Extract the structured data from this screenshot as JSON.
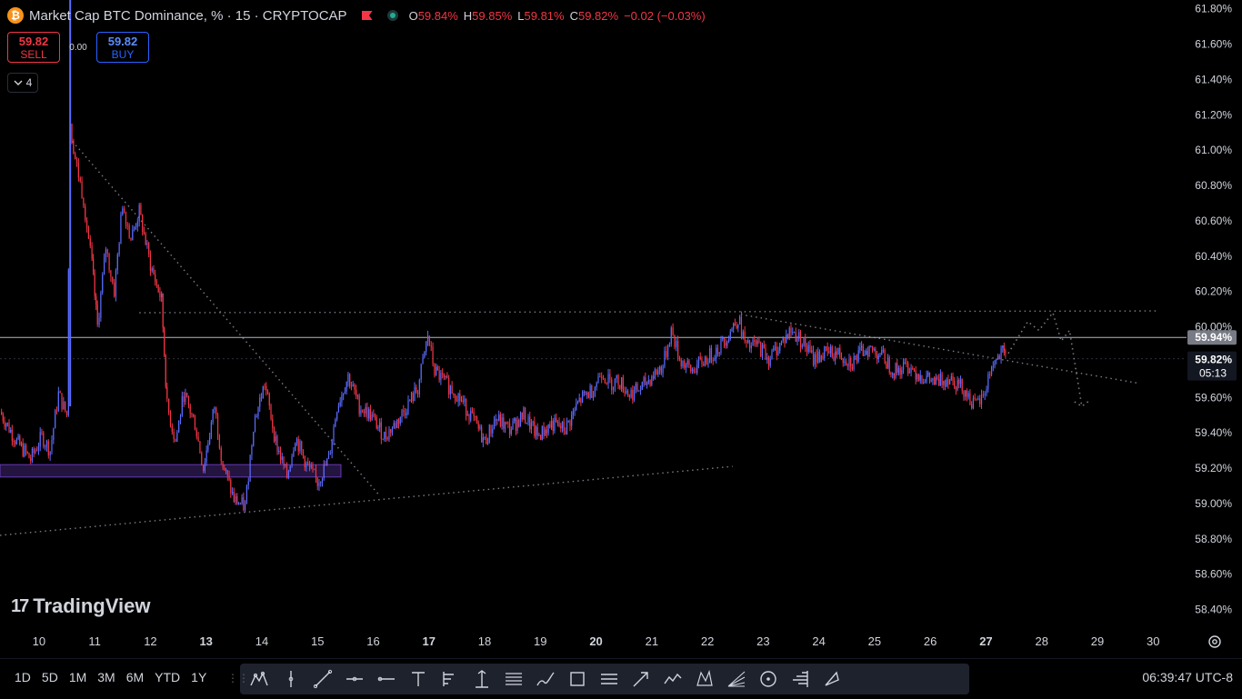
{
  "header": {
    "symbol_badge": "₿",
    "title": "Market Cap BTC Dominance, % · 15 · CRYPTOCAP",
    "ohlc": [
      {
        "k": "O",
        "v": "59.84%"
      },
      {
        "k": "H",
        "v": "59.85%"
      },
      {
        "k": "L",
        "v": "59.81%"
      },
      {
        "k": "C",
        "v": "59.82%"
      }
    ],
    "change": "−0.02 (−0.03%)"
  },
  "trade": {
    "sell_price": "59.82",
    "sell_label": "SELL",
    "spread": "0.00",
    "buy_price": "59.82",
    "buy_label": "BUY"
  },
  "indicators_toggle": {
    "icon": "chevron-down-icon",
    "count": "4"
  },
  "logo": {
    "text": "TradingView"
  },
  "ranges": [
    "1D",
    "5D",
    "1M",
    "3M",
    "6M",
    "YTD",
    "1Y"
  ],
  "tools": [
    "pattern-icon",
    "vertical-line-icon",
    "trend-line-icon",
    "horizontal-ray-icon",
    "horizontal-line-icon",
    "text-icon",
    "long-position-icon",
    "price-range-icon",
    "fib-retracement-icon",
    "brush-icon",
    "rectangle-icon",
    "parallel-channel-icon",
    "arrow-icon",
    "path-icon",
    "xabcd-pattern-icon",
    "gann-fan-icon",
    "circle-icon",
    "volume-profile-icon",
    "arrow-marker-icon"
  ],
  "clock": "06:39:47 UTC-8",
  "settings_icon": "gear-icon",
  "colors": {
    "up": "#5b6cff",
    "down": "#f23645",
    "bg": "#000000",
    "grid_text": "#d1d4dc"
  },
  "chart_data": {
    "type": "candlestick",
    "timeframe": "15",
    "ylim": [
      58.3,
      61.85
    ],
    "y_ticks": [
      61.8,
      61.6,
      61.4,
      61.2,
      61.0,
      60.8,
      60.6,
      60.4,
      60.2,
      60.0,
      59.6,
      59.4,
      59.2,
      59.0,
      58.8,
      58.6,
      58.4
    ],
    "y_tick_labels": [
      "61.80%",
      "61.60%",
      "61.40%",
      "61.20%",
      "61.00%",
      "60.80%",
      "60.60%",
      "60.40%",
      "60.20%",
      "60.00%",
      "59.60%",
      "59.40%",
      "59.20%",
      "59.00%",
      "58.80%",
      "58.60%",
      "58.40%"
    ],
    "x_ticks": [
      10,
      11,
      12,
      13,
      14,
      15,
      16,
      17,
      18,
      19,
      20,
      21,
      22,
      23,
      24,
      25,
      26,
      27,
      28,
      29,
      30
    ],
    "x_tick_labels": [
      "10",
      "11",
      "12",
      "13",
      "14",
      "15",
      "16",
      "17",
      "18",
      "19",
      "20",
      "21",
      "22",
      "23",
      "24",
      "25",
      "26",
      "27",
      "28",
      "29",
      "30"
    ],
    "x_bold_labels": [
      "13",
      "17",
      "20",
      "27"
    ],
    "xlim": [
      9.3,
      30.6
    ],
    "price_path": [
      [
        9.3,
        59.52
      ],
      [
        9.6,
        59.35
      ],
      [
        9.85,
        59.25
      ],
      [
        10.05,
        59.38
      ],
      [
        10.2,
        59.3
      ],
      [
        10.35,
        59.62
      ],
      [
        10.5,
        59.5
      ],
      [
        10.56,
        61.15
      ],
      [
        10.65,
        60.95
      ],
      [
        10.8,
        60.72
      ],
      [
        10.95,
        60.35
      ],
      [
        11.05,
        60.0
      ],
      [
        11.2,
        60.45
      ],
      [
        11.35,
        60.2
      ],
      [
        11.5,
        60.7
      ],
      [
        11.65,
        60.5
      ],
      [
        11.8,
        60.65
      ],
      [
        12.0,
        60.35
      ],
      [
        12.2,
        60.15
      ],
      [
        12.3,
        59.55
      ],
      [
        12.45,
        59.35
      ],
      [
        12.6,
        59.62
      ],
      [
        12.8,
        59.45
      ],
      [
        12.95,
        59.2
      ],
      [
        13.15,
        59.55
      ],
      [
        13.3,
        59.22
      ],
      [
        13.5,
        59.02
      ],
      [
        13.7,
        58.98
      ],
      [
        13.85,
        59.45
      ],
      [
        14.05,
        59.68
      ],
      [
        14.25,
        59.35
      ],
      [
        14.45,
        59.15
      ],
      [
        14.6,
        59.38
      ],
      [
        14.8,
        59.22
      ],
      [
        15.0,
        59.12
      ],
      [
        15.2,
        59.25
      ],
      [
        15.35,
        59.55
      ],
      [
        15.55,
        59.72
      ],
      [
        15.75,
        59.55
      ],
      [
        15.95,
        59.5
      ],
      [
        16.2,
        59.38
      ],
      [
        16.4,
        59.45
      ],
      [
        16.6,
        59.55
      ],
      [
        16.8,
        59.65
      ],
      [
        16.98,
        59.95
      ],
      [
        17.1,
        59.75
      ],
      [
        17.3,
        59.68
      ],
      [
        17.5,
        59.62
      ],
      [
        17.75,
        59.5
      ],
      [
        18.0,
        59.35
      ],
      [
        18.2,
        59.48
      ],
      [
        18.45,
        59.42
      ],
      [
        18.7,
        59.5
      ],
      [
        18.95,
        59.38
      ],
      [
        19.2,
        59.45
      ],
      [
        19.45,
        59.42
      ],
      [
        19.7,
        59.58
      ],
      [
        19.95,
        59.65
      ],
      [
        20.1,
        59.75
      ],
      [
        20.25,
        59.68
      ],
      [
        20.4,
        59.7
      ],
      [
        20.6,
        59.62
      ],
      [
        20.8,
        59.65
      ],
      [
        21.0,
        59.72
      ],
      [
        21.2,
        59.78
      ],
      [
        21.35,
        59.98
      ],
      [
        21.5,
        59.82
      ],
      [
        21.7,
        59.75
      ],
      [
        21.9,
        59.8
      ],
      [
        22.1,
        59.85
      ],
      [
        22.3,
        59.92
      ],
      [
        22.55,
        60.05
      ],
      [
        22.7,
        59.88
      ],
      [
        22.9,
        59.9
      ],
      [
        23.1,
        59.82
      ],
      [
        23.3,
        59.9
      ],
      [
        23.5,
        59.98
      ],
      [
        23.7,
        59.92
      ],
      [
        23.9,
        59.82
      ],
      [
        24.1,
        59.85
      ],
      [
        24.35,
        59.85
      ],
      [
        24.6,
        59.8
      ],
      [
        24.85,
        59.88
      ],
      [
        25.1,
        59.85
      ],
      [
        25.35,
        59.75
      ],
      [
        25.6,
        59.78
      ],
      [
        25.85,
        59.72
      ],
      [
        26.1,
        59.68
      ],
      [
        26.35,
        59.72
      ],
      [
        26.6,
        59.65
      ],
      [
        26.8,
        59.55
      ],
      [
        26.95,
        59.6
      ],
      [
        27.1,
        59.78
      ],
      [
        27.3,
        59.85
      ],
      [
        27.35,
        59.82
      ]
    ],
    "current_price": 59.82,
    "current_price_label": "59.82%",
    "countdown": "05:13",
    "horizontal_line": {
      "value": 59.94,
      "label": "59.94%"
    },
    "annotations": {
      "descending_trendline": [
        [
          10.6,
          61.05
        ],
        [
          16.1,
          59.05
        ]
      ],
      "rising_support": [
        [
          9.3,
          58.82
        ],
        [
          22.45,
          59.21
        ]
      ],
      "resistance_dotted": [
        [
          11.8,
          60.08
        ],
        [
          30.1,
          60.09
        ]
      ],
      "descending_resistance": [
        [
          22.6,
          60.07
        ],
        [
          29.75,
          59.68
        ]
      ],
      "support_zone": {
        "x": [
          9.3,
          15.42
        ],
        "y": [
          59.15,
          59.22
        ]
      },
      "projected_path": [
        [
          27.4,
          59.85
        ],
        [
          27.75,
          60.03
        ],
        [
          27.95,
          59.98
        ],
        [
          28.2,
          60.08
        ],
        [
          28.35,
          59.92
        ],
        [
          28.5,
          59.98
        ],
        [
          28.72,
          59.55
        ]
      ]
    }
  }
}
